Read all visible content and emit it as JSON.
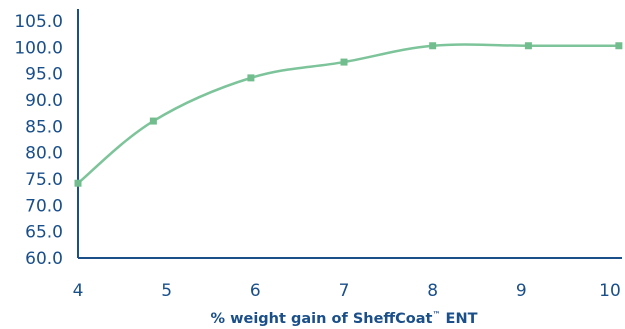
{
  "colors": {
    "text": "#1a4f8a",
    "axis": "#1a4f8a",
    "line": "#7dc49a",
    "marker": "#72bd8e"
  },
  "chart_data": {
    "type": "line",
    "title": "",
    "xlabel": "% weight gain of SheffCoat™ ENT",
    "xlabel_parts": {
      "before": "% weight gain of SheffCoat",
      "sup": "™",
      "after": " ENT"
    },
    "ylabel": "",
    "xlim": [
      4,
      10
    ],
    "ylim": [
      60,
      105
    ],
    "x_ticks": [
      "4",
      "5",
      "6",
      "7",
      "8",
      "9",
      "10"
    ],
    "y_ticks": [
      "60.0",
      "65.0",
      "70.0",
      "75.0",
      "80.0",
      "85.0",
      "90.0",
      "95.0",
      "100.0",
      "105.0"
    ],
    "grid": false,
    "legend": "none",
    "series": [
      {
        "x": [
          4,
          4.85,
          5.95,
          7,
          8,
          9.08,
          10.1
        ],
        "y": [
          74.2,
          86.0,
          94.2,
          97.2,
          100.3,
          100.3,
          100.3
        ]
      }
    ]
  }
}
